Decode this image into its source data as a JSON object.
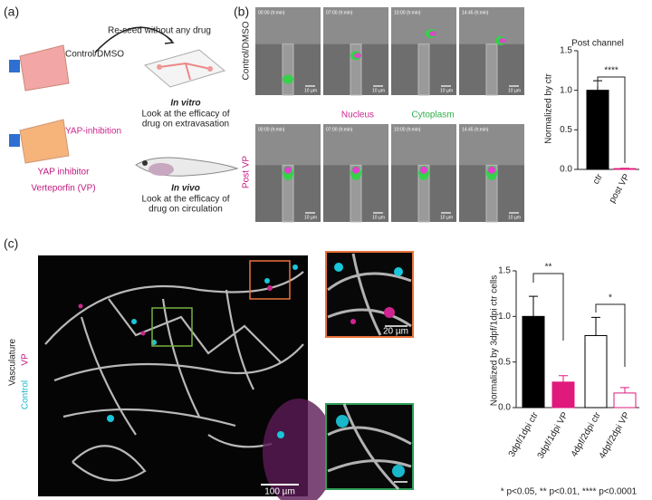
{
  "panel_a": {
    "label": "(a)",
    "arrow_text": "Re-seed without any drug",
    "flask_1": "Control/DMSO",
    "flask_2": "YAP-inhibition",
    "treatment": [
      "YAP inhibitor",
      "Verteporfin (VP)"
    ],
    "in_vitro": {
      "title": "In vitro",
      "text": [
        "Look at the efficacy of",
        "drug on extravasation"
      ]
    },
    "in_vivo": {
      "title": "In vivo",
      "text": [
        "Look at the efficacy of",
        "drug on circulation"
      ]
    }
  },
  "panel_b": {
    "label": "(b)",
    "timestamps": [
      "00:00 (h:min)",
      "07:00 (h:min)",
      "10:00 (h:min)",
      "14:45 (h:min)"
    ],
    "scale_bar": "10 µm",
    "rows": [
      "Control/DMSO",
      "Post VP"
    ],
    "channels": [
      "Nucleus",
      "Cytoplasm"
    ]
  },
  "panel_c": {
    "label": "(c)",
    "legend": [
      "Vasculature",
      "Control",
      "VP"
    ],
    "scale_bar_main": "100 µm",
    "scale_bar_inset": "20 µm",
    "footnote": "* p<0.05, ** p<0.01, **** p<0.0001"
  },
  "chart_data": [
    {
      "type": "bar",
      "title": "Post channel",
      "y_label": "Normalized by ctr",
      "categories": [
        "ctr",
        "post VP"
      ],
      "values": [
        1.0,
        0.01
      ],
      "errors": [
        0.12,
        0.005
      ],
      "colors": [
        "#000000",
        "#e0197d"
      ],
      "edge_colors": [
        "#000000",
        "#e0197d"
      ],
      "ylim": [
        0,
        1.5
      ],
      "yticks": [
        {
          "value": 0,
          "label": "0.0"
        },
        {
          "value": 0.5,
          "label": "0.5"
        },
        {
          "value": 1,
          "label": "1.0"
        },
        {
          "value": 1.5,
          "label": "1.5"
        }
      ],
      "significance": [
        "****"
      ]
    },
    {
      "type": "bar",
      "y_label": "Normalized by 3dpf/1dpi ctr cells",
      "categories": [
        "3dpf/1dpi ctr",
        "3dpf/1dpi VP",
        "4dpf/2dpi ctr",
        "4dpf/2dpi VP"
      ],
      "values": [
        1.0,
        0.28,
        0.79,
        0.16
      ],
      "errors": [
        0.22,
        0.07,
        0.2,
        0.06
      ],
      "colors": [
        "#000000",
        "#e0197d",
        "#ffffff",
        "#ffffff"
      ],
      "edge_colors": [
        "#000000",
        "#e0197d",
        "#000000",
        "#e0197d"
      ],
      "ylim": [
        0,
        1.5
      ],
      "yticks": [
        {
          "value": 0,
          "label": "0.0"
        },
        {
          "value": 0.5,
          "label": "0.5"
        },
        {
          "value": 1,
          "label": "1.0"
        },
        {
          "value": 1.5,
          "label": "1.5"
        }
      ],
      "significance": [
        "**",
        "*"
      ]
    }
  ]
}
